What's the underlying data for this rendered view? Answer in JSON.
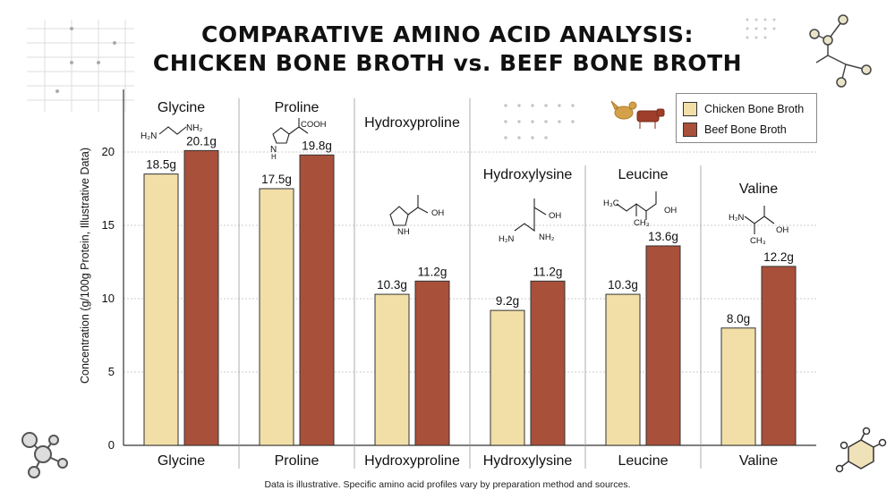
{
  "title_lines": [
    "COMPARATIVE AMINO ACID ANALYSIS:",
    "CHICKEN BONE BROTH vs. BEEF BONE BROTH"
  ],
  "footnote": "Data is illustrative. Specific amino acid profiles vary by preparation method and sources.",
  "colors": {
    "chicken": "#f2dfa7",
    "beef": "#a9503a",
    "grid": "#bdbdbd",
    "axis": "#333333"
  },
  "chart_data": {
    "type": "bar",
    "ylabel": "Concentration (g/100g Protein, Illustrative Data)",
    "ylim": [
      0,
      23
    ],
    "yticks": [
      0,
      5,
      10,
      15,
      20
    ],
    "grid": true,
    "legend_position": "top-right",
    "categories": [
      "Glycine",
      "Proline",
      "Hydroxyproline",
      "Hydroxylysine",
      "Leucine",
      "Valine"
    ],
    "series": [
      {
        "name": "Chicken Bone Broth",
        "values": [
          18.5,
          17.5,
          10.3,
          9.2,
          10.3,
          8.0
        ],
        "labels": [
          "18.5g",
          "17.5g",
          "10.3g",
          "9.2g",
          "10.3g",
          "8.0g"
        ]
      },
      {
        "name": "Beef Bone Broth",
        "values": [
          20.1,
          19.8,
          11.2,
          11.2,
          13.6,
          12.2
        ],
        "labels": [
          "20.1g",
          "19.8g",
          "11.2g",
          "11.2g",
          "13.6g",
          "12.2g"
        ]
      }
    ],
    "structure_labels": [
      [
        "H₂N",
        "NH₂"
      ],
      [
        "COOH",
        "N",
        "H"
      ],
      [
        "OH",
        "N",
        "H"
      ],
      [
        "OH",
        "H₂N",
        "NH₂"
      ],
      [
        "H₃C",
        "CH₃",
        "OH"
      ],
      [
        "H₂N",
        "OH",
        "CH₃"
      ]
    ]
  }
}
